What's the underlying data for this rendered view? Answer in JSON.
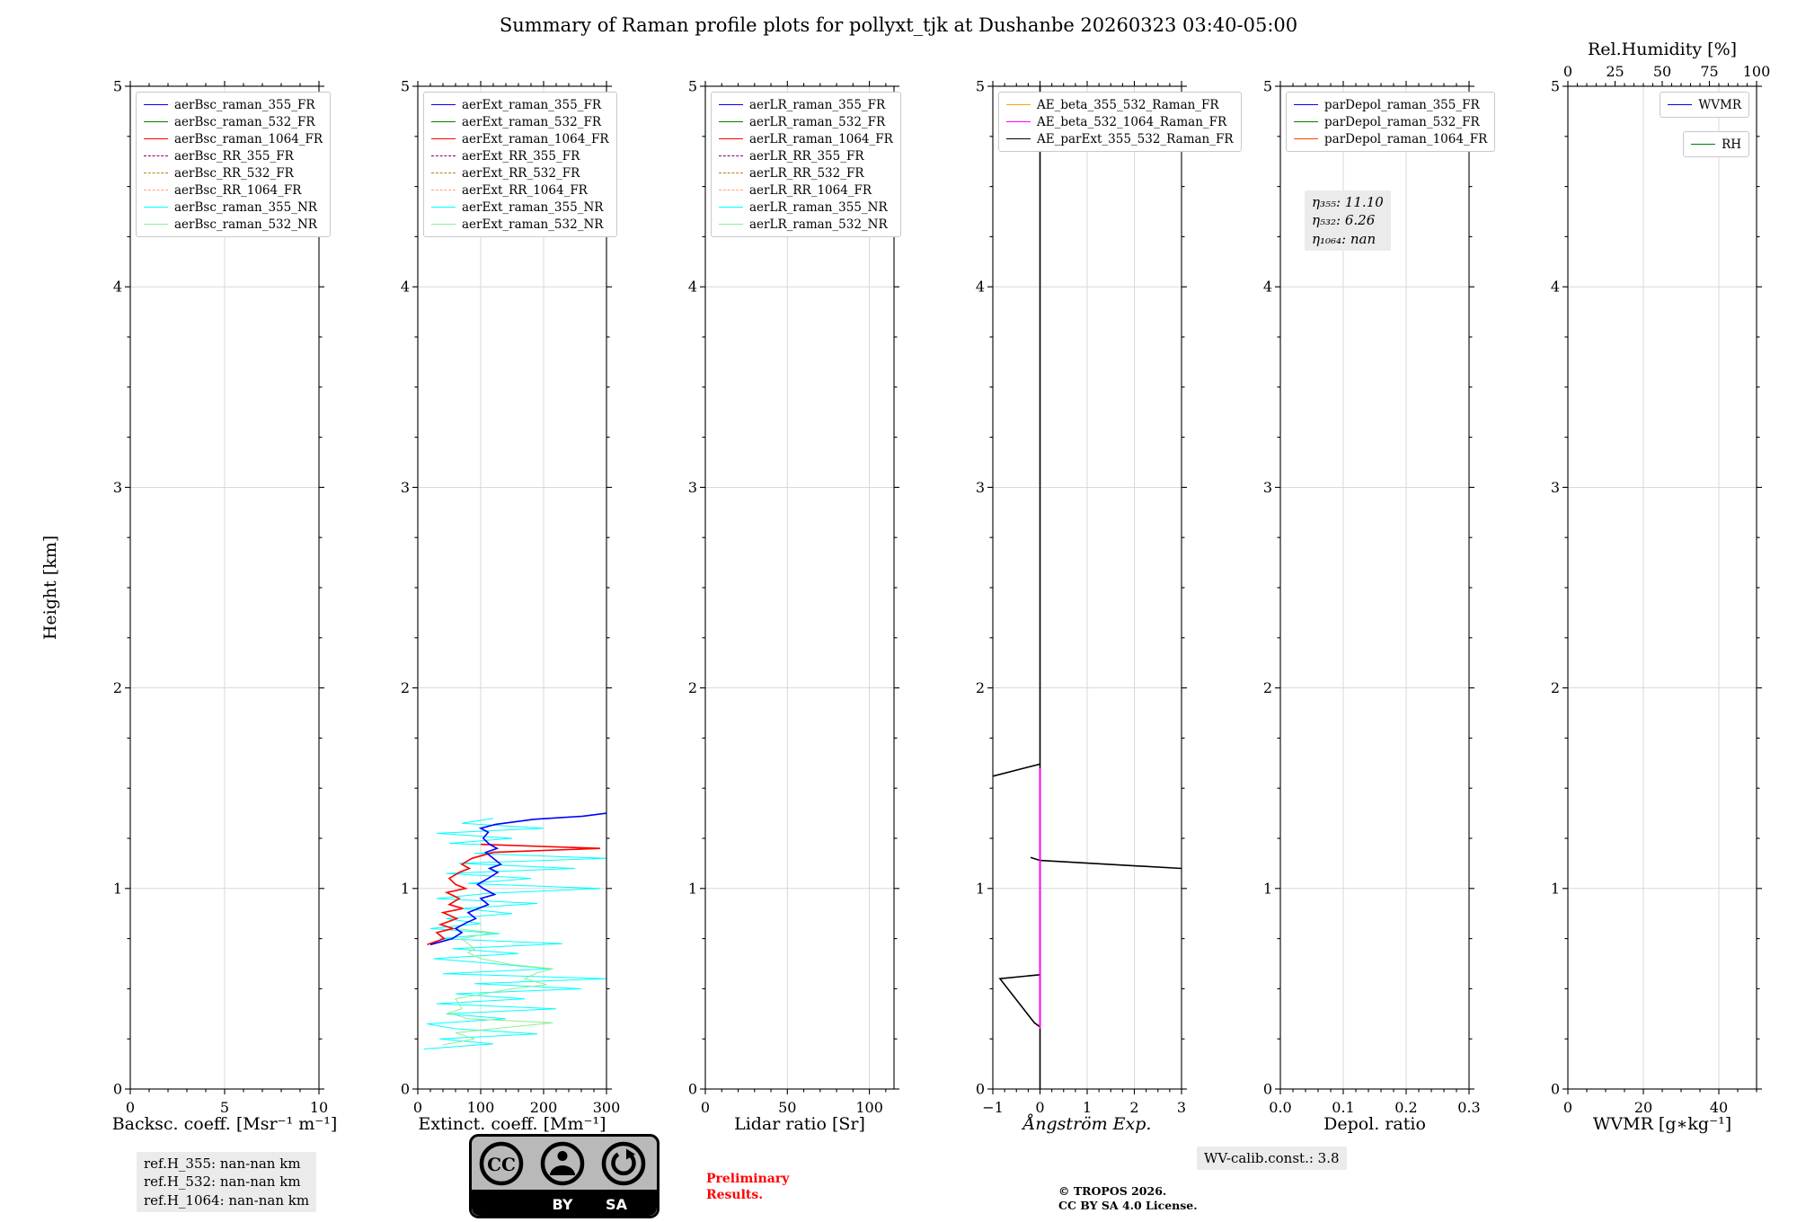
{
  "title": "Summary of Raman profile plots for pollyxt_tjk at Dushanbe 20260323 03:40-05:00",
  "chart_data": {
    "type": "line",
    "orientation": "vertical-profiles",
    "ylabel": "Height [km]",
    "ylim": [
      0,
      5
    ],
    "yticks": [
      0,
      1,
      2,
      3,
      4,
      5
    ],
    "grid": true,
    "panels": [
      {
        "key": "backscatter",
        "xlabel": "Backsc. coeff. [Msr⁻¹ m⁻¹]",
        "xlim": [
          0,
          10
        ],
        "xticks": [
          0,
          5,
          10
        ],
        "xtick_labels": [
          "0",
          "5",
          "10"
        ],
        "xminor": 1,
        "legend_loc": "upper-left",
        "legend": [
          {
            "label": "aerBsc_raman_355_FR",
            "color": "#0000ff",
            "dash": "solid"
          },
          {
            "label": "aerBsc_raman_532_FR",
            "color": "#008000",
            "dash": "solid"
          },
          {
            "label": "aerBsc_raman_1064_FR",
            "color": "#ff0000",
            "dash": "solid"
          },
          {
            "label": "aerBsc_RR_355_FR",
            "color": "#800080",
            "dash": "dashed"
          },
          {
            "label": "aerBsc_RR_532_FR",
            "color": "#b8860b",
            "dash": "dashed"
          },
          {
            "label": "aerBsc_RR_1064_FR",
            "color": "#ffa07a",
            "dash": "dashed"
          },
          {
            "label": "aerBsc_raman_355_NR",
            "color": "#00ffff",
            "dash": "solid"
          },
          {
            "label": "aerBsc_raman_532_NR",
            "color": "#90ee90",
            "dash": "solid"
          }
        ],
        "series": []
      },
      {
        "key": "extinction",
        "xlabel": "Extinct. coeff. [Mm⁻¹]",
        "xlim": [
          0,
          300
        ],
        "xticks": [
          0,
          100,
          200,
          300
        ],
        "xtick_labels": [
          "0",
          "100",
          "200",
          "300"
        ],
        "xminor": 20,
        "legend_loc": "upper-left",
        "legend": [
          {
            "label": "aerExt_raman_355_FR",
            "color": "#0000ff",
            "dash": "solid"
          },
          {
            "label": "aerExt_raman_532_FR",
            "color": "#008000",
            "dash": "solid"
          },
          {
            "label": "aerExt_raman_1064_FR",
            "color": "#ff0000",
            "dash": "solid"
          },
          {
            "label": "aerExt_RR_355_FR",
            "color": "#800080",
            "dash": "dashed"
          },
          {
            "label": "aerExt_RR_532_FR",
            "color": "#b8860b",
            "dash": "dashed"
          },
          {
            "label": "aerExt_RR_1064_FR",
            "color": "#ffa07a",
            "dash": "dashed"
          },
          {
            "label": "aerExt_raman_355_NR",
            "color": "#00ffff",
            "dash": "solid"
          },
          {
            "label": "aerExt_raman_532_NR",
            "color": "#90ee90",
            "dash": "solid"
          }
        ],
        "series": [
          {
            "name": "aerExt_raman_355_NR",
            "color": "#00ffff",
            "width": 1.0,
            "points": [
              [
                10,
                0.2
              ],
              [
                120,
                0.225
              ],
              [
                35,
                0.25
              ],
              [
                190,
                0.275
              ],
              [
                60,
                0.3
              ],
              [
                15,
                0.325
              ],
              [
                140,
                0.35
              ],
              [
                45,
                0.375
              ],
              [
                220,
                0.4
              ],
              [
                30,
                0.425
              ],
              [
                170,
                0.45
              ],
              [
                60,
                0.475
              ],
              [
                260,
                0.5
              ],
              [
                90,
                0.525
              ],
              [
                300,
                0.55
              ],
              [
                40,
                0.575
              ],
              [
                210,
                0.6
              ],
              [
                120,
                0.625
              ],
              [
                25,
                0.65
              ],
              [
                160,
                0.675
              ],
              [
                55,
                0.7
              ],
              [
                230,
                0.725
              ],
              [
                35,
                0.75
              ],
              [
                130,
                0.775
              ],
              [
                20,
                0.8
              ],
              [
                100,
                0.825
              ],
              [
                45,
                0.85
              ],
              [
                150,
                0.875
              ],
              [
                70,
                0.9
              ],
              [
                190,
                0.925
              ],
              [
                30,
                0.95
              ],
              [
                110,
                0.975
              ],
              [
                290,
                1.0
              ],
              [
                80,
                1.025
              ],
              [
                180,
                1.05
              ],
              [
                45,
                1.075
              ],
              [
                250,
                1.1
              ],
              [
                65,
                1.125
              ],
              [
                300,
                1.15
              ],
              [
                90,
                1.175
              ],
              [
                280,
                1.2
              ],
              [
                50,
                1.225
              ],
              [
                150,
                1.25
              ],
              [
                30,
                1.275
              ],
              [
                200,
                1.3
              ],
              [
                70,
                1.325
              ],
              [
                120,
                1.35
              ]
            ]
          },
          {
            "name": "aerExt_raman_532_NR",
            "color": "#90ee90",
            "width": 1.0,
            "points": [
              [
                40,
                0.22
              ],
              [
                90,
                0.25
              ],
              [
                60,
                0.28
              ],
              [
                120,
                0.3
              ],
              [
                215,
                0.33
              ],
              [
                80,
                0.35
              ],
              [
                50,
                0.38
              ],
              [
                70,
                0.4
              ],
              [
                60,
                0.45
              ],
              [
                150,
                0.5
              ],
              [
                205,
                0.52
              ],
              [
                170,
                0.55
              ],
              [
                190,
                0.58
              ],
              [
                215,
                0.6
              ],
              [
                150,
                0.62
              ],
              [
                100,
                0.65
              ],
              [
                80,
                0.68
              ],
              [
                90,
                0.7
              ],
              [
                70,
                0.75
              ],
              [
                120,
                0.78
              ],
              [
                60,
                0.8
              ]
            ]
          },
          {
            "name": "aerExt_raman_1064_FR",
            "color": "#ff0000",
            "width": 1.6,
            "points": [
              [
                15,
                0.72
              ],
              [
                42,
                0.75
              ],
              [
                30,
                0.78
              ],
              [
                56,
                0.8
              ],
              [
                36,
                0.82
              ],
              [
                62,
                0.85
              ],
              [
                40,
                0.88
              ],
              [
                72,
                0.9
              ],
              [
                50,
                0.92
              ],
              [
                66,
                0.95
              ],
              [
                46,
                0.98
              ],
              [
                76,
                1.0
              ],
              [
                60,
                1.02
              ],
              [
                50,
                1.05
              ],
              [
                66,
                1.08
              ],
              [
                82,
                1.1
              ],
              [
                70,
                1.12
              ],
              [
                86,
                1.15
              ],
              [
                120,
                1.18
              ],
              [
                290,
                1.2
              ],
              [
                100,
                1.22
              ]
            ]
          },
          {
            "name": "aerExt_raman_355_FR",
            "color": "#0000ff",
            "width": 1.6,
            "points": [
              [
                20,
                0.72
              ],
              [
                55,
                0.75
              ],
              [
                70,
                0.78
              ],
              [
                60,
                0.8
              ],
              [
                78,
                0.83
              ],
              [
                92,
                0.85
              ],
              [
                80,
                0.88
              ],
              [
                96,
                0.9
              ],
              [
                112,
                0.92
              ],
              [
                100,
                0.95
              ],
              [
                122,
                0.97
              ],
              [
                104,
                1.0
              ],
              [
                95,
                1.02
              ],
              [
                112,
                1.05
              ],
              [
                127,
                1.08
              ],
              [
                114,
                1.1
              ],
              [
                132,
                1.12
              ],
              [
                120,
                1.15
              ],
              [
                108,
                1.18
              ],
              [
                126,
                1.2
              ],
              [
                114,
                1.22
              ],
              [
                104,
                1.25
              ],
              [
                112,
                1.28
              ],
              [
                100,
                1.3
              ],
              [
                124,
                1.32
              ],
              [
                185,
                1.345
              ],
              [
                262,
                1.36
              ],
              [
                300,
                1.375
              ]
            ]
          }
        ]
      },
      {
        "key": "lidar-ratio",
        "xlabel": "Lidar ratio [Sr]",
        "xlim": [
          0,
          115
        ],
        "xticks": [
          0,
          50,
          100
        ],
        "xtick_labels": [
          "0",
          "50",
          "100"
        ],
        "xminor": 10,
        "legend_loc": "upper-left",
        "legend": [
          {
            "label": "aerLR_raman_355_FR",
            "color": "#0000ff",
            "dash": "solid"
          },
          {
            "label": "aerLR_raman_532_FR",
            "color": "#008000",
            "dash": "solid"
          },
          {
            "label": "aerLR_raman_1064_FR",
            "color": "#ff0000",
            "dash": "solid"
          },
          {
            "label": "aerLR_RR_355_FR",
            "color": "#800080",
            "dash": "dashed"
          },
          {
            "label": "aerLR_RR_532_FR",
            "color": "#b8860b",
            "dash": "dashed"
          },
          {
            "label": "aerLR_RR_1064_FR",
            "color": "#ffa07a",
            "dash": "dashed"
          },
          {
            "label": "aerLR_raman_355_NR",
            "color": "#00ffff",
            "dash": "solid"
          },
          {
            "label": "aerLR_raman_532_NR",
            "color": "#90ee90",
            "dash": "solid"
          }
        ],
        "series": []
      },
      {
        "key": "angstroem",
        "xlabel": "Ångström Exp.",
        "xlim": [
          -1,
          3
        ],
        "xticks": [
          -1,
          0,
          1,
          2,
          3
        ],
        "xtick_labels": [
          "−1",
          "0",
          "1",
          "2",
          "3"
        ],
        "xminor": 0.25,
        "legend_loc": "upper-left",
        "legend": [
          {
            "label": "AE_beta_355_532_Raman_FR",
            "color": "#ffa500",
            "dash": "solid"
          },
          {
            "label": "AE_beta_532_1064_Raman_FR",
            "color": "#ff00ff",
            "dash": "solid"
          },
          {
            "label": "AE_parExt_355_532_Raman_FR",
            "color": "#000000",
            "dash": "solid"
          }
        ],
        "series": [
          {
            "name": "AE_parExt_355_532_Raman_FR",
            "color": "#000000",
            "width": 1.6,
            "segments": [
              [
                [
                  0,
                  5.0
                ],
                [
                  0,
                  1.62
                ],
                [
                  -1,
                  1.56
                ]
              ],
              [
                [
                  0,
                  1.62
                ],
                [
                  0,
                  0.0
                ]
              ],
              [
                [
                  -0.2,
                  1.155
                ],
                [
                  0,
                  1.14
                ],
                [
                  3,
                  1.1
                ]
              ],
              [
                [
                  0,
                  0.57
                ],
                [
                  -0.85,
                  0.55
                ],
                [
                  -0.12,
                  0.33
                ],
                [
                  0,
                  0.31
                ]
              ]
            ]
          },
          {
            "name": "AE_beta_532_1064_Raman_FR",
            "color": "#ff00ff",
            "width": 1.8,
            "segments": [
              [
                [
                  0,
                  1.6
                ],
                [
                  0,
                  0.3
                ]
              ]
            ]
          }
        ]
      },
      {
        "key": "depol",
        "xlabel": "Depol. ratio",
        "xlim": [
          0,
          0.3
        ],
        "xticks": [
          0,
          0.1,
          0.2,
          0.3
        ],
        "xtick_labels": [
          "0.0",
          "0.1",
          "0.2",
          "0.3"
        ],
        "xminor": 0.02,
        "legend_loc": "upper-left",
        "legend": [
          {
            "label": "parDepol_raman_355_FR",
            "color": "#0000ff",
            "dash": "solid"
          },
          {
            "label": "parDepol_raman_532_FR",
            "color": "#008000",
            "dash": "solid"
          },
          {
            "label": "parDepol_raman_1064_FR",
            "color": "#ff4500",
            "dash": "solid"
          }
        ],
        "series": []
      },
      {
        "key": "wvmr",
        "xlabel": "WVMR [g∗kg⁻¹]",
        "xlim": [
          0,
          50
        ],
        "xticks": [
          0,
          20,
          40
        ],
        "xtick_labels": [
          "0",
          "20",
          "40"
        ],
        "xminor": 5,
        "legend_loc": "separate-right",
        "legend": [
          {
            "label": "WVMR",
            "color": "#0000ff",
            "dash": "solid"
          },
          {
            "label": "RH",
            "color": "#008000",
            "dash": "solid"
          }
        ],
        "top_axis": {
          "label": "Rel.Humidity [%]",
          "xlim": [
            0,
            100
          ],
          "ticks": [
            0,
            25,
            50,
            75,
            100
          ],
          "tick_labels": [
            "0",
            "25",
            "50",
            "75",
            "100"
          ],
          "minor": 5
        },
        "series": []
      }
    ]
  },
  "annotations": {
    "eta": [
      "η₃₅₅: 11.10",
      "η₅₃₂: 6.26",
      "η₁₀₆₄: nan"
    ],
    "refh": [
      "ref.H_355: nan-nan km",
      "ref.H_532: nan-nan km",
      "ref.H_1064: nan-nan km"
    ],
    "wv_calib": "WV-calib.const.: 3.8",
    "preliminary": [
      "Preliminary",
      "Results."
    ],
    "copyright": [
      "© TROPOS 2026.",
      "CC BY SA 4.0 License."
    ]
  },
  "badge": {
    "cc": "CC",
    "by": "BY",
    "sa": "SA"
  }
}
